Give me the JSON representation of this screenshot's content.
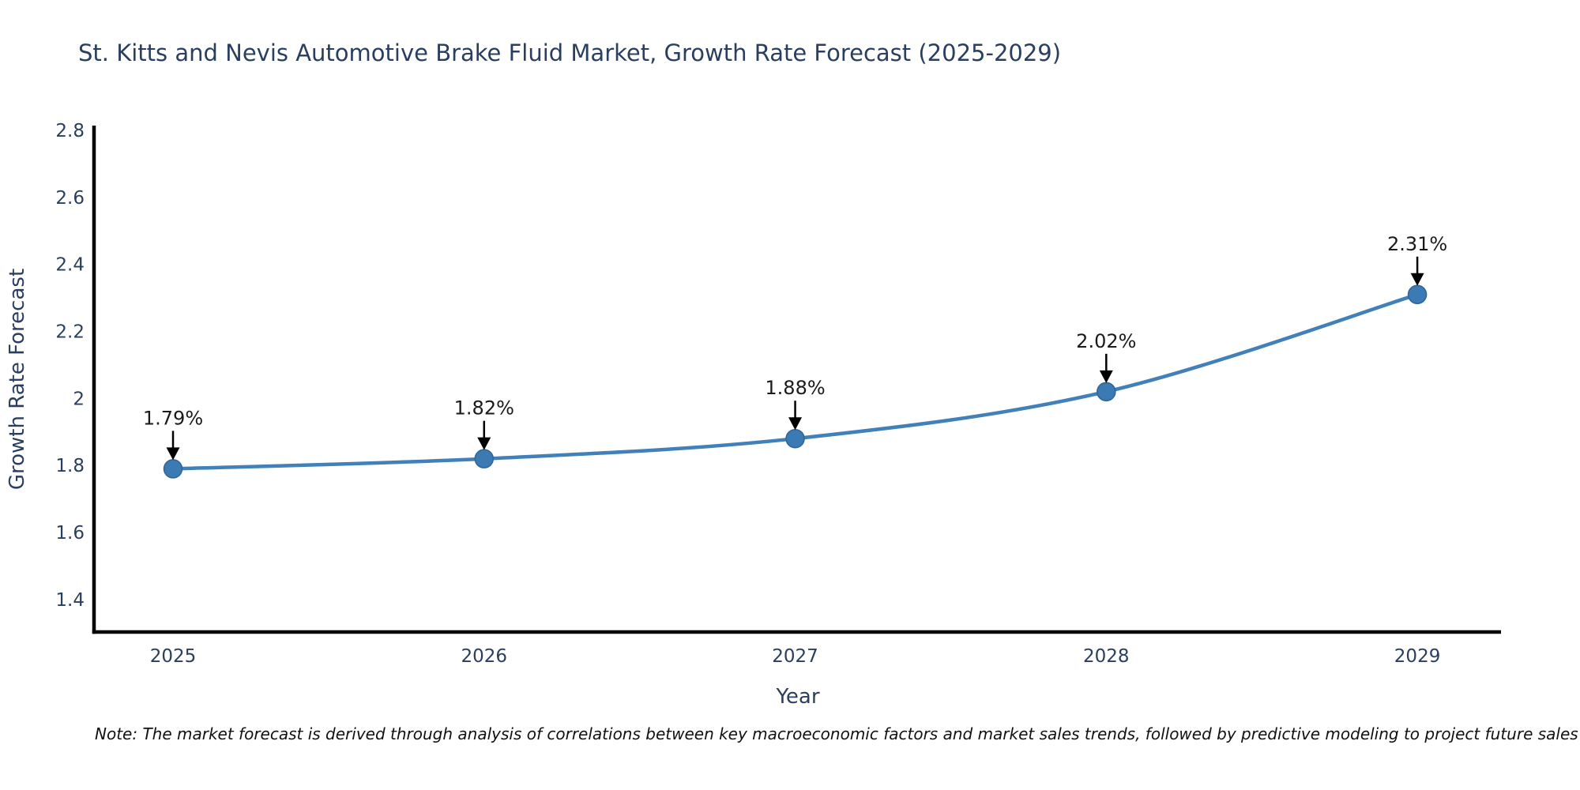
{
  "note": "Note: The market forecast is derived through analysis of correlations between key macroeconomic factors and market sales trends, followed by predictive modeling to project future sales",
  "chart_data": {
    "type": "line",
    "title": "St. Kitts and Nevis Automotive Brake Fluid Market, Growth Rate Forecast (2025-2029)",
    "xlabel": "Year",
    "ylabel": "Growth Rate Forecast",
    "x": [
      2025,
      2026,
      2027,
      2028,
      2029
    ],
    "series": [
      {
        "name": "Growth Rate Forecast",
        "values": [
          1.79,
          1.82,
          1.88,
          2.02,
          2.31
        ]
      }
    ],
    "annotations": [
      "1.79%",
      "1.82%",
      "1.88%",
      "2.02%",
      "2.31%"
    ],
    "x_tick_labels": [
      "2025",
      "2026",
      "2027",
      "2028",
      "2029"
    ],
    "y_ticks": [
      1.4,
      1.6,
      1.8,
      2.0,
      2.2,
      2.4,
      2.6,
      2.8
    ],
    "y_tick_labels": [
      "1.4",
      "1.6",
      "1.8",
      "2",
      "2.2",
      "2.4",
      "2.6",
      "2.8"
    ],
    "xlim": [
      2024.746,
      2029.269
    ],
    "ylim": [
      1.303,
      2.814
    ],
    "grid": false,
    "legend": "none",
    "line_shape": "spline",
    "colors": {
      "line": "#4180b8",
      "marker_fill": "#3c7ab3",
      "marker_edge": "#2f6496",
      "axis_line": "#000000",
      "tick_text": "#2a3f5f",
      "annotation_text": "#1a1a1a",
      "arrow": "#000000",
      "background": "#ffffff"
    }
  }
}
